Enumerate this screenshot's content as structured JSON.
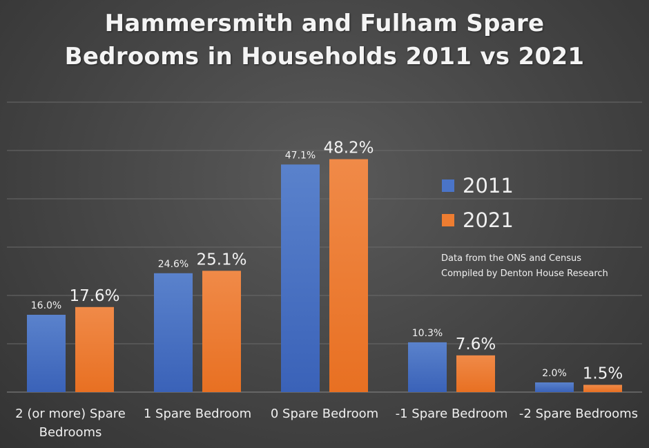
{
  "chart_data": {
    "type": "bar",
    "title_lines": [
      "Hammersmith and Fulham Spare",
      "Bedrooms in Households 2011 vs 2021"
    ],
    "categories": [
      [
        "2 (or more) Spare",
        "Bedrooms"
      ],
      [
        "1 Spare Bedroom"
      ],
      [
        "0 Spare Bedroom"
      ],
      [
        "-1 Spare Bedroom"
      ],
      [
        "-2 Spare Bedrooms"
      ]
    ],
    "series": [
      {
        "name": "2011",
        "values": [
          16.0,
          24.6,
          47.1,
          10.3,
          2.0
        ],
        "labels": [
          "16.0%",
          "24.6%",
          "47.1%",
          "10.3%",
          "2.0%"
        ],
        "color": "#4472c4"
      },
      {
        "name": "2021",
        "values": [
          17.6,
          25.1,
          48.2,
          7.6,
          1.5
        ],
        "labels": [
          "17.6%",
          "25.1%",
          "48.2%",
          "7.6%",
          "1.5%"
        ],
        "color": "#ed7d31"
      }
    ],
    "ylim": [
      0,
      60
    ],
    "gridlines": true,
    "legend_position": "right",
    "notes": [
      "Data from the ONS and Census",
      "Compiled by Denton House Research"
    ]
  }
}
